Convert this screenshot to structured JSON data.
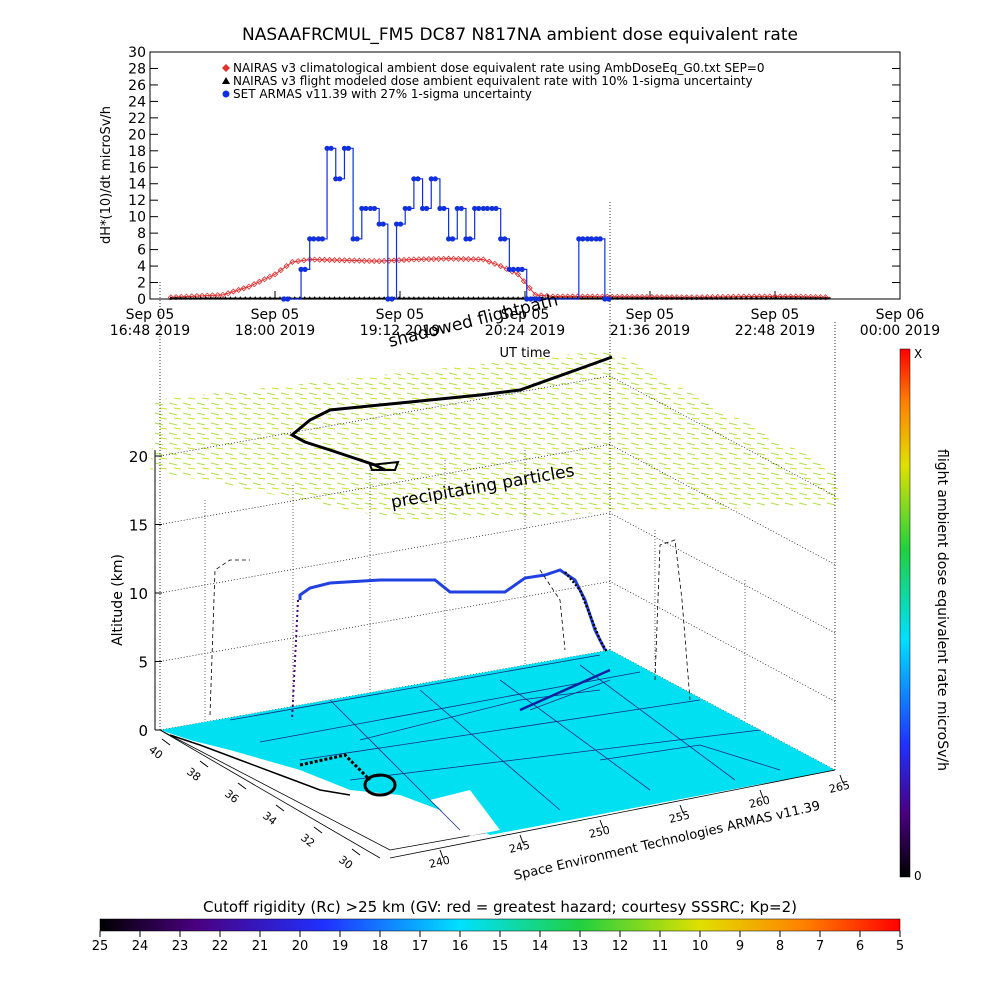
{
  "chart_data": [
    {
      "type": "line",
      "title": "NASAAFRCMUL_FM5 DC87 N817NA ambient dose equivalent rate",
      "ylabel": "dH*(10)/dt microSv/h",
      "xlabel": "UT time",
      "ylim": [
        0,
        30
      ],
      "yticks": [
        "0",
        "2",
        "4",
        "6",
        "8",
        "10",
        "12",
        "14",
        "16",
        "18",
        "20",
        "22",
        "24",
        "26",
        "28",
        "30"
      ],
      "xticks": [
        {
          "top": "Sep 05",
          "bottom": "16:48 2019"
        },
        {
          "top": "Sep 05",
          "bottom": "18:00 2019"
        },
        {
          "top": "Sep 05",
          "bottom": "19:12 2019"
        },
        {
          "top": "Sep 05",
          "bottom": "20:24 2019"
        },
        {
          "top": "Sep 05",
          "bottom": "21:36 2019"
        },
        {
          "top": "Sep 05",
          "bottom": "22:48 2019"
        },
        {
          "top": "Sep 06",
          "bottom": "00:00 2019"
        }
      ],
      "legend_position": "top-left",
      "series": [
        {
          "name": "NAIRAS v3 climatological ambient dose equivalent rate using AmbDoseEq_G0.txt SEP=0",
          "color": "#e03030",
          "marker": "diamond",
          "x": [
            "17:00",
            "17:30",
            "17:45",
            "18:00",
            "18:10",
            "18:20",
            "18:40",
            "19:00",
            "19:20",
            "19:40",
            "20:00",
            "20:10",
            "20:20",
            "20:30",
            "20:40",
            "21:00",
            "22:00",
            "22:30",
            "23:00",
            "23:20"
          ],
          "y": [
            0.2,
            0.5,
            1.5,
            3.0,
            4.5,
            4.8,
            4.7,
            4.6,
            4.8,
            4.9,
            4.8,
            4.0,
            3.0,
            0.5,
            0.3,
            0.3,
            0.2,
            0.3,
            0.3,
            0.2
          ]
        },
        {
          "name": "NAIRAS v3 flight modeled dose ambient equivalent rate with 10% 1-sigma uncertainty",
          "color": "#000000",
          "marker": "triangle",
          "x": [
            "17:00",
            "18:00",
            "19:00",
            "20:00",
            "21:00",
            "22:00",
            "23:20"
          ],
          "y": [
            0.1,
            0.1,
            0.1,
            0.1,
            0.1,
            0.1,
            0.1
          ]
        },
        {
          "name": "SET ARMAS v11.39 with 27% 1-sigma uncertainty",
          "color": "#1030e0",
          "marker": "circle",
          "x": [
            "18:05",
            "18:15",
            "18:20",
            "18:25",
            "18:30",
            "18:35",
            "18:40",
            "18:45",
            "18:50",
            "18:55",
            "19:00",
            "19:05",
            "19:10",
            "19:15",
            "19:20",
            "19:25",
            "19:30",
            "19:35",
            "19:40",
            "19:45",
            "19:50",
            "19:55",
            "20:00",
            "20:05",
            "20:10",
            "20:15",
            "20:20",
            "20:25",
            "20:30",
            "20:55",
            "21:00",
            "21:05",
            "21:10"
          ],
          "y": [
            0,
            3.6,
            7.3,
            7.3,
            18.3,
            14.6,
            18.3,
            7.3,
            11,
            11,
            9.1,
            0,
            9.1,
            11,
            14.6,
            11,
            14.6,
            11,
            7.3,
            11,
            7.3,
            11,
            11,
            11,
            7.3,
            3.6,
            3.6,
            0,
            0,
            7.3,
            7.3,
            7.3,
            0
          ]
        }
      ]
    },
    {
      "type": "scatter",
      "title": "Space Environment Technologies ARMAS v11.39",
      "zlabel": "Altitude (km)",
      "zticks": [
        "0",
        "5",
        "10",
        "15",
        "20"
      ],
      "lat_ticks": [
        "40",
        "38",
        "36",
        "34",
        "32",
        "30"
      ],
      "lon_ticks": [
        "240",
        "245",
        "250",
        "255",
        "260",
        "265"
      ],
      "annotations": [
        "precipitating particles",
        "shadowed flightpath"
      ],
      "flightpath": [
        {
          "lon": 243.3,
          "lat": 35.0,
          "alt": 8.5
        },
        {
          "lon": 243.8,
          "lat": 35.2,
          "alt": 10.0
        },
        {
          "lon": 246.0,
          "lat": 35.5,
          "alt": 10.5
        },
        {
          "lon": 249.0,
          "lat": 35.6,
          "alt": 10.9
        },
        {
          "lon": 251.0,
          "lat": 35.8,
          "alt": 10.0
        },
        {
          "lon": 254.0,
          "lat": 36.0,
          "alt": 10.0
        },
        {
          "lon": 255.5,
          "lat": 36.1,
          "alt": 10.8
        },
        {
          "lon": 257.0,
          "lat": 36.2,
          "alt": 12.0
        },
        {
          "lon": 258.5,
          "lat": 36.3,
          "alt": 8.0
        },
        {
          "lon": 259.5,
          "lat": 36.4,
          "alt": 3.0
        }
      ],
      "colorbar_right": {
        "label": "flight ambient dose equivalent rate microSv/h",
        "top": "X",
        "bottom": "0"
      }
    },
    {
      "type": "heatmap",
      "title": "Cutoff rigidity (Rc) >25 km (GV: red = greatest hazard; courtesy SSSRC; Kp=2)",
      "ticks": [
        "25",
        "24",
        "23",
        "22",
        "21",
        "20",
        "19",
        "18",
        "17",
        "16",
        "15",
        "14",
        "13",
        "12",
        "11",
        "10",
        "9",
        "8",
        "7",
        "6",
        "5"
      ]
    }
  ]
}
